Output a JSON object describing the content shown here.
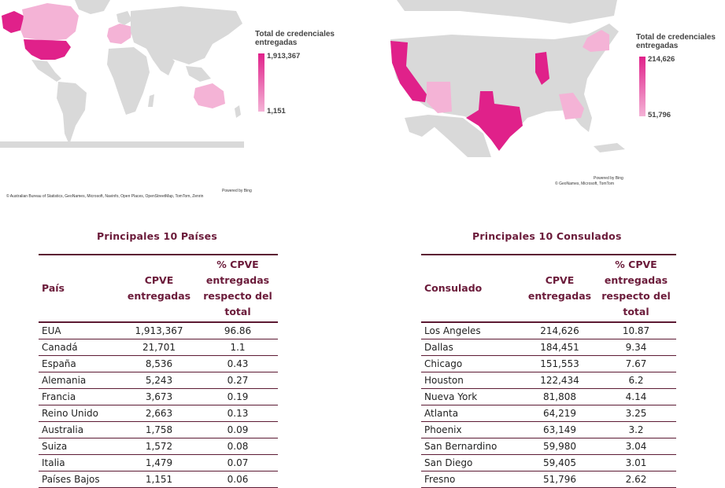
{
  "colors": {
    "land": "#d9d9d9",
    "high": "#e0218a",
    "mid": "#e879b8",
    "low": "#f4b3d6",
    "header": "#6b1b3a",
    "rule": "#5c1a33"
  },
  "world_map": {
    "legend_title": "Total de credenciales entregadas",
    "legend_max": "1,913,367",
    "legend_min": "1,151",
    "powered_by": "Powered by Bing",
    "attribution": "© Australian Bureau of Statistics, GeoNames, Microsoft, Navinfo, Open Places, OpenStreetMap, TomTom, Zenrin",
    "highlighted": [
      "United States",
      "Canada",
      "Australia",
      "Europe"
    ]
  },
  "us_map": {
    "legend_title": "Total de credenciales entregadas",
    "legend_max": "214,626",
    "legend_min": "51,796",
    "powered_by": "Powered by Bing",
    "attribution": "© GeoNames, Microsoft, TomTom",
    "highlighted": [
      "California",
      "Texas",
      "Illinois",
      "New York",
      "Georgia",
      "Arizona"
    ]
  },
  "countries_table": {
    "title": "Principales 10 Países",
    "headers": [
      "País",
      "CPVE entregadas",
      "% CPVE entregadas respecto del total"
    ],
    "rows": [
      [
        "EUA",
        "1,913,367",
        "96.86"
      ],
      [
        "Canadá",
        "21,701",
        "1.1"
      ],
      [
        "España",
        "8,536",
        "0.43"
      ],
      [
        "Alemania",
        "5,243",
        "0.27"
      ],
      [
        "Francia",
        "3,673",
        "0.19"
      ],
      [
        "Reino Unido",
        "2,663",
        "0.13"
      ],
      [
        "Australia",
        "1,758",
        "0.09"
      ],
      [
        "Suiza",
        "1,572",
        "0.08"
      ],
      [
        "Italia",
        "1,479",
        "0.07"
      ],
      [
        "Países Bajos",
        "1,151",
        "0.06"
      ]
    ]
  },
  "consulates_table": {
    "title": "Principales 10 Consulados",
    "headers": [
      "Consulado",
      "CPVE entregadas",
      "% CPVE entregadas respecto del total"
    ],
    "rows": [
      [
        "Los Angeles",
        "214,626",
        "10.87"
      ],
      [
        "Dallas",
        "184,451",
        "9.34"
      ],
      [
        "Chicago",
        "151,553",
        "7.67"
      ],
      [
        "Houston",
        "122,434",
        "6.2"
      ],
      [
        "Nueva York",
        "81,808",
        "4.14"
      ],
      [
        "Atlanta",
        "64,219",
        "3.25"
      ],
      [
        "Phoenix",
        "63,149",
        "3.2"
      ],
      [
        "San Bernardino",
        "59,980",
        "3.04"
      ],
      [
        "San Diego",
        "59,405",
        "3.01"
      ],
      [
        "Fresno",
        "51,796",
        "2.62"
      ]
    ]
  }
}
